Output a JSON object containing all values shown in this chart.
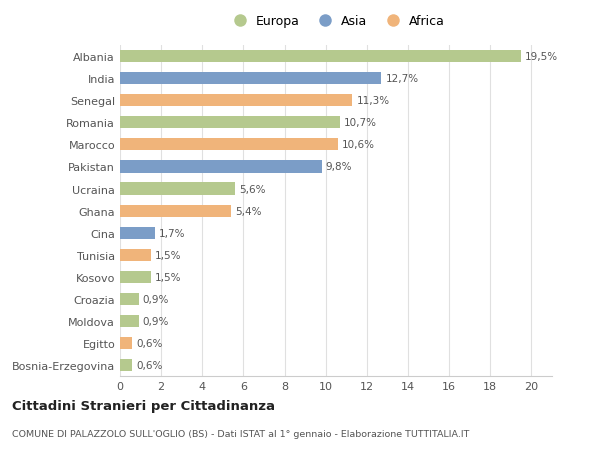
{
  "countries": [
    "Albania",
    "India",
    "Senegal",
    "Romania",
    "Marocco",
    "Pakistan",
    "Ucraina",
    "Ghana",
    "Cina",
    "Tunisia",
    "Kosovo",
    "Croazia",
    "Moldova",
    "Egitto",
    "Bosnia-Erzegovina"
  ],
  "values": [
    19.5,
    12.7,
    11.3,
    10.7,
    10.6,
    9.8,
    5.6,
    5.4,
    1.7,
    1.5,
    1.5,
    0.9,
    0.9,
    0.6,
    0.6
  ],
  "labels": [
    "19,5%",
    "12,7%",
    "11,3%",
    "10,7%",
    "10,6%",
    "9,8%",
    "5,6%",
    "5,4%",
    "1,7%",
    "1,5%",
    "1,5%",
    "0,9%",
    "0,9%",
    "0,6%",
    "0,6%"
  ],
  "continents": [
    "Europa",
    "Asia",
    "Africa",
    "Europa",
    "Africa",
    "Asia",
    "Europa",
    "Africa",
    "Asia",
    "Africa",
    "Europa",
    "Europa",
    "Europa",
    "Africa",
    "Europa"
  ],
  "colors": {
    "Europa": "#b5c98e",
    "Asia": "#7b9dc7",
    "Africa": "#f0b47a"
  },
  "title": "Cittadini Stranieri per Cittadinanza",
  "subtitle": "COMUNE DI PALAZZOLO SULL'OGLIO (BS) - Dati ISTAT al 1° gennaio - Elaborazione TUTTITALIA.IT",
  "xlim": [
    0,
    21
  ],
  "xticks": [
    0,
    2,
    4,
    6,
    8,
    10,
    12,
    14,
    16,
    18,
    20
  ],
  "background_color": "#ffffff",
  "grid_color": "#e0e0e0"
}
